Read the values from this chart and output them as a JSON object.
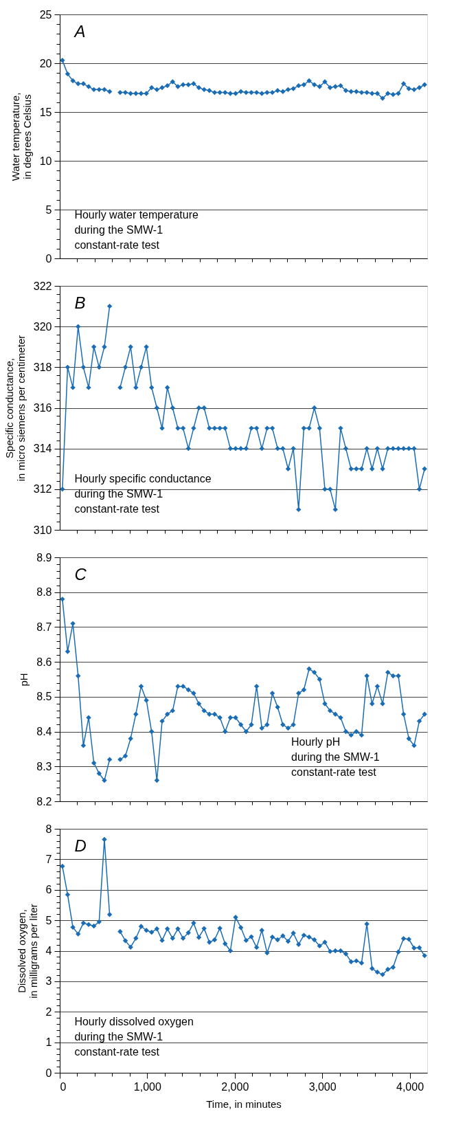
{
  "chart_data": [
    {
      "type": "line",
      "ylabel": "Water temperature,\nin degrees Celsius",
      "annotations": [
        "A",
        "Hourly water temperature\nduring the SMW-1\nconstant-rate test"
      ],
      "x": [
        30,
        90,
        150,
        210,
        270,
        330,
        390,
        450,
        510,
        570,
        630,
        690,
        750,
        810,
        870,
        930,
        990,
        1050,
        1110,
        1170,
        1230,
        1290,
        1350,
        1410,
        1470,
        1530,
        1590,
        1650,
        1710,
        1770,
        1830,
        1890,
        1950,
        2010,
        2070,
        2130,
        2190,
        2250,
        2310,
        2370,
        2430,
        2490,
        2550,
        2610,
        2670,
        2730,
        2790,
        2850,
        2910,
        2970,
        3030,
        3090,
        3150,
        3210,
        3270,
        3330,
        3390,
        3450,
        3510,
        3570,
        3630,
        3690,
        3750,
        3810,
        3870,
        3930,
        3990,
        4050,
        4110,
        4170
      ],
      "series": [
        {
          "color": "#1a6db5",
          "values": [
            20.3,
            18.9,
            18.2,
            17.9,
            17.9,
            17.6,
            17.3,
            17.3,
            17.3,
            17.1,
            null,
            17.0,
            17.0,
            16.9,
            16.9,
            16.9,
            16.9,
            17.5,
            17.3,
            17.5,
            17.7,
            18.1,
            17.6,
            17.8,
            17.8,
            17.9,
            17.5,
            17.3,
            17.2,
            17.0,
            17.0,
            17.0,
            16.9,
            16.9,
            17.1,
            17.0,
            17.0,
            17.0,
            16.9,
            17.0,
            17.0,
            17.2,
            17.1,
            17.3,
            17.4,
            17.7,
            17.8,
            18.2,
            17.8,
            17.6,
            18.1,
            17.5,
            17.6,
            17.7,
            17.2,
            17.1,
            17.1,
            17.0,
            17.0,
            16.9,
            16.9,
            16.4,
            16.9,
            16.8,
            16.9,
            17.9,
            17.4,
            17.3,
            17.5,
            17.8
          ]
        }
      ],
      "xlim": [
        0,
        4200
      ],
      "xticks": [
        {
          "value": 200,
          "label": null
        },
        {
          "value": 400,
          "label": null
        },
        {
          "value": 600,
          "label": null
        },
        {
          "value": 800,
          "label": null
        },
        {
          "value": 1000,
          "label": null
        },
        {
          "value": 1200,
          "label": null
        },
        {
          "value": 1400,
          "label": null
        },
        {
          "value": 1600,
          "label": null
        },
        {
          "value": 1800,
          "label": null
        },
        {
          "value": 2000,
          "label": null
        },
        {
          "value": 2200,
          "label": null
        },
        {
          "value": 2400,
          "label": null
        },
        {
          "value": 2600,
          "label": null
        },
        {
          "value": 2800,
          "label": null
        },
        {
          "value": 3000,
          "label": null
        },
        {
          "value": 3200,
          "label": null
        },
        {
          "value": 3400,
          "label": null
        },
        {
          "value": 3600,
          "label": null
        },
        {
          "value": 3800,
          "label": null
        },
        {
          "value": 4000,
          "label": null
        }
      ],
      "ylim": [
        0,
        25
      ],
      "yticks": [
        0,
        {
          "value": 1,
          "label": null
        },
        {
          "value": 2,
          "label": null
        },
        {
          "value": 3,
          "label": null
        },
        {
          "value": 4,
          "label": null
        },
        5,
        {
          "value": 6,
          "label": null
        },
        {
          "value": 7,
          "label": null
        },
        {
          "value": 8,
          "label": null
        },
        {
          "value": 9,
          "label": null
        },
        10,
        {
          "value": 11,
          "label": null
        },
        {
          "value": 12,
          "label": null
        },
        {
          "value": 13,
          "label": null
        },
        {
          "value": 14,
          "label": null
        },
        15,
        {
          "value": 16,
          "label": null
        },
        {
          "value": 17,
          "label": null
        },
        {
          "value": 18,
          "label": null
        },
        {
          "value": 19,
          "label": null
        },
        20,
        {
          "value": 21,
          "label": null
        },
        {
          "value": 22,
          "label": null
        },
        {
          "value": 23,
          "label": null
        },
        {
          "value": 24,
          "label": null
        },
        25
      ],
      "tick_labels": "y",
      "grid": "y",
      "marker": "diamond",
      "line_style": "solid"
    },
    {
      "type": "line",
      "ylabel": "Specific conductance,\nin micro siemens per centimeter",
      "annotations": [
        "B",
        "Hourly specific conductance\nduring the SMW-1\nconstant-rate test"
      ],
      "x": [
        30,
        90,
        150,
        210,
        270,
        330,
        390,
        450,
        510,
        570,
        630,
        690,
        750,
        810,
        870,
        930,
        990,
        1050,
        1110,
        1170,
        1230,
        1290,
        1350,
        1410,
        1470,
        1530,
        1590,
        1650,
        1710,
        1770,
        1830,
        1890,
        1950,
        2010,
        2070,
        2130,
        2190,
        2250,
        2310,
        2370,
        2430,
        2490,
        2550,
        2610,
        2670,
        2730,
        2790,
        2850,
        2910,
        2970,
        3030,
        3090,
        3150,
        3210,
        3270,
        3330,
        3390,
        3450,
        3510,
        3570,
        3630,
        3690,
        3750,
        3810,
        3870,
        3930,
        3990,
        4050,
        4110,
        4170
      ],
      "series": [
        {
          "color": "#1a6db5",
          "values": [
            312,
            318,
            317,
            320,
            318,
            317,
            319,
            318,
            319,
            321,
            null,
            317,
            318,
            319,
            317,
            318,
            319,
            317,
            316,
            315,
            317,
            316,
            315,
            315,
            314,
            315,
            316,
            316,
            315,
            315,
            315,
            315,
            314,
            314,
            314,
            314,
            315,
            315,
            314,
            315,
            315,
            314,
            314,
            313,
            314,
            311,
            315,
            315,
            316,
            315,
            312,
            312,
            311,
            315,
            314,
            313,
            313,
            313,
            314,
            313,
            314,
            313,
            314,
            314,
            314,
            314,
            314,
            314,
            312,
            313
          ]
        }
      ],
      "xlim": [
        0,
        4200
      ],
      "xticks": [
        {
          "value": 200,
          "label": null
        },
        {
          "value": 400,
          "label": null
        },
        {
          "value": 600,
          "label": null
        },
        {
          "value": 800,
          "label": null
        },
        {
          "value": 1000,
          "label": null
        },
        {
          "value": 1200,
          "label": null
        },
        {
          "value": 1400,
          "label": null
        },
        {
          "value": 1600,
          "label": null
        },
        {
          "value": 1800,
          "label": null
        },
        {
          "value": 2000,
          "label": null
        },
        {
          "value": 2200,
          "label": null
        },
        {
          "value": 2400,
          "label": null
        },
        {
          "value": 2600,
          "label": null
        },
        {
          "value": 2800,
          "label": null
        },
        {
          "value": 3000,
          "label": null
        },
        {
          "value": 3200,
          "label": null
        },
        {
          "value": 3400,
          "label": null
        },
        {
          "value": 3600,
          "label": null
        },
        {
          "value": 3800,
          "label": null
        },
        {
          "value": 4000,
          "label": null
        }
      ],
      "ylim": [
        310,
        322
      ],
      "yticks": [
        310,
        {
          "value": 310.4,
          "label": null
        },
        {
          "value": 310.8,
          "label": null
        },
        {
          "value": 311.2,
          "label": null
        },
        {
          "value": 311.6,
          "label": null
        },
        312,
        {
          "value": 312.4,
          "label": null
        },
        {
          "value": 312.8,
          "label": null
        },
        {
          "value": 313.2,
          "label": null
        },
        {
          "value": 313.6,
          "label": null
        },
        314,
        {
          "value": 314.4,
          "label": null
        },
        {
          "value": 314.8,
          "label": null
        },
        {
          "value": 315.2,
          "label": null
        },
        {
          "value": 315.6,
          "label": null
        },
        316,
        {
          "value": 316.4,
          "label": null
        },
        {
          "value": 316.8,
          "label": null
        },
        {
          "value": 317.2,
          "label": null
        },
        {
          "value": 317.6,
          "label": null
        },
        318,
        {
          "value": 318.4,
          "label": null
        },
        {
          "value": 318.8,
          "label": null
        },
        {
          "value": 319.2,
          "label": null
        },
        {
          "value": 319.6,
          "label": null
        },
        320,
        {
          "value": 320.4,
          "label": null
        },
        {
          "value": 320.8,
          "label": null
        },
        {
          "value": 321.2,
          "label": null
        },
        {
          "value": 321.6,
          "label": null
        },
        322
      ],
      "tick_labels": "y",
      "grid": "y",
      "marker": "diamond",
      "line_style": "solid"
    },
    {
      "type": "line",
      "ylabel": "pH",
      "annotations": [
        "C",
        "Hourly pH\nduring the SMW-1\nconstant-rate test"
      ],
      "x": [
        30,
        90,
        150,
        210,
        270,
        330,
        390,
        450,
        510,
        570,
        630,
        690,
        750,
        810,
        870,
        930,
        990,
        1050,
        1110,
        1170,
        1230,
        1290,
        1350,
        1410,
        1470,
        1530,
        1590,
        1650,
        1710,
        1770,
        1830,
        1890,
        1950,
        2010,
        2070,
        2130,
        2190,
        2250,
        2310,
        2370,
        2430,
        2490,
        2550,
        2610,
        2670,
        2730,
        2790,
        2850,
        2910,
        2970,
        3030,
        3090,
        3150,
        3210,
        3270,
        3330,
        3390,
        3450,
        3510,
        3570,
        3630,
        3690,
        3750,
        3810,
        3870,
        3930,
        3990,
        4050,
        4110,
        4170
      ],
      "series": [
        {
          "color": "#1a6db5",
          "values": [
            8.78,
            8.63,
            8.71,
            8.56,
            8.36,
            8.44,
            8.31,
            8.28,
            8.26,
            8.32,
            null,
            8.32,
            8.33,
            8.38,
            8.45,
            8.53,
            8.49,
            8.4,
            8.26,
            8.43,
            8.45,
            8.46,
            8.53,
            8.53,
            8.52,
            8.51,
            8.48,
            8.46,
            8.45,
            8.45,
            8.44,
            8.4,
            8.44,
            8.44,
            8.42,
            8.4,
            8.42,
            8.53,
            8.41,
            8.42,
            8.51,
            8.47,
            8.42,
            8.41,
            8.42,
            8.51,
            8.52,
            8.58,
            8.57,
            8.55,
            8.48,
            8.46,
            8.45,
            8.44,
            8.4,
            8.39,
            8.4,
            8.39,
            8.56,
            8.48,
            8.53,
            8.48,
            8.57,
            8.56,
            8.56,
            8.45,
            8.38,
            8.36,
            8.43,
            8.45
          ]
        }
      ],
      "xlim": [
        0,
        4200
      ],
      "xticks": [
        {
          "value": 200,
          "label": null
        },
        {
          "value": 400,
          "label": null
        },
        {
          "value": 600,
          "label": null
        },
        {
          "value": 800,
          "label": null
        },
        {
          "value": 1000,
          "label": null
        },
        {
          "value": 1200,
          "label": null
        },
        {
          "value": 1400,
          "label": null
        },
        {
          "value": 1600,
          "label": null
        },
        {
          "value": 1800,
          "label": null
        },
        {
          "value": 2000,
          "label": null
        },
        {
          "value": 2200,
          "label": null
        },
        {
          "value": 2400,
          "label": null
        },
        {
          "value": 2600,
          "label": null
        },
        {
          "value": 2800,
          "label": null
        },
        {
          "value": 3000,
          "label": null
        },
        {
          "value": 3200,
          "label": null
        },
        {
          "value": 3400,
          "label": null
        },
        {
          "value": 3600,
          "label": null
        },
        {
          "value": 3800,
          "label": null
        },
        {
          "value": 4000,
          "label": null
        }
      ],
      "ylim": [
        8.2,
        8.9
      ],
      "yticks": [
        8.2,
        {
          "value": 8.22,
          "label": null
        },
        {
          "value": 8.24,
          "label": null
        },
        {
          "value": 8.26,
          "label": null
        },
        {
          "value": 8.28,
          "label": null
        },
        8.3,
        {
          "value": 8.32,
          "label": null
        },
        {
          "value": 8.34,
          "label": null
        },
        {
          "value": 8.36,
          "label": null
        },
        {
          "value": 8.38,
          "label": null
        },
        8.4,
        {
          "value": 8.42,
          "label": null
        },
        {
          "value": 8.44,
          "label": null
        },
        {
          "value": 8.46,
          "label": null
        },
        {
          "value": 8.48,
          "label": null
        },
        8.5,
        {
          "value": 8.52,
          "label": null
        },
        {
          "value": 8.54,
          "label": null
        },
        {
          "value": 8.56,
          "label": null
        },
        {
          "value": 8.58,
          "label": null
        },
        8.6,
        {
          "value": 8.62,
          "label": null
        },
        {
          "value": 8.64,
          "label": null
        },
        {
          "value": 8.66,
          "label": null
        },
        {
          "value": 8.68,
          "label": null
        },
        8.7,
        {
          "value": 8.72,
          "label": null
        },
        {
          "value": 8.74,
          "label": null
        },
        {
          "value": 8.76,
          "label": null
        },
        {
          "value": 8.78,
          "label": null
        },
        8.8,
        {
          "value": 8.82,
          "label": null
        },
        {
          "value": 8.84,
          "label": null
        },
        {
          "value": 8.86,
          "label": null
        },
        {
          "value": 8.88,
          "label": null
        },
        8.9
      ],
      "tick_labels": "y",
      "grid": "y",
      "marker": "diamond",
      "line_style": "solid"
    },
    {
      "type": "line",
      "xlabel": "Time, in minutes",
      "ylabel": "Dissolved oxygen,\nin milligrams per liter",
      "annotations": [
        "D",
        "Hourly dissolved oxygen\nduring the SMW-1\nconstant-rate test"
      ],
      "x": [
        30,
        90,
        150,
        210,
        270,
        330,
        390,
        450,
        510,
        570,
        630,
        690,
        750,
        810,
        870,
        930,
        990,
        1050,
        1110,
        1170,
        1230,
        1290,
        1350,
        1410,
        1470,
        1530,
        1590,
        1650,
        1710,
        1770,
        1830,
        1890,
        1950,
        2010,
        2070,
        2130,
        2190,
        2250,
        2310,
        2370,
        2430,
        2490,
        2550,
        2610,
        2670,
        2730,
        2790,
        2850,
        2910,
        2970,
        3030,
        3090,
        3150,
        3210,
        3270,
        3330,
        3390,
        3450,
        3510,
        3570,
        3630,
        3690,
        3750,
        3810,
        3870,
        3930,
        3990,
        4050,
        4110,
        4170
      ],
      "series": [
        {
          "color": "#1a6db5",
          "values": [
            6.77,
            5.84,
            4.77,
            4.55,
            4.91,
            4.86,
            4.81,
            4.95,
            7.65,
            5.19,
            null,
            4.63,
            4.33,
            4.12,
            4.41,
            4.8,
            4.67,
            4.61,
            4.72,
            4.34,
            4.72,
            4.41,
            4.72,
            4.41,
            4.59,
            4.91,
            4.44,
            4.73,
            4.28,
            4.36,
            4.74,
            4.23,
            4.0,
            5.1,
            4.76,
            4.34,
            4.46,
            4.11,
            4.67,
            3.93,
            4.45,
            4.36,
            4.49,
            4.31,
            4.58,
            4.21,
            4.51,
            4.45,
            4.36,
            4.16,
            4.28,
            3.98,
            4.0,
            4.0,
            3.9,
            3.64,
            3.67,
            3.6,
            4.88,
            3.42,
            3.3,
            3.22,
            3.39,
            3.46,
            3.96,
            4.4,
            4.38,
            4.09,
            4.1,
            3.84
          ]
        }
      ],
      "xlim": [
        0,
        4200
      ],
      "xticks": [
        0,
        {
          "value": 200,
          "label": null
        },
        {
          "value": 400,
          "label": null
        },
        {
          "value": 600,
          "label": null
        },
        {
          "value": 800,
          "label": null
        },
        {
          "value": 1000,
          "label": "1,000"
        },
        {
          "value": 1200,
          "label": null
        },
        {
          "value": 1400,
          "label": null
        },
        {
          "value": 1600,
          "label": null
        },
        {
          "value": 1800,
          "label": null
        },
        {
          "value": 2000,
          "label": "2,000"
        },
        {
          "value": 2200,
          "label": null
        },
        {
          "value": 2400,
          "label": null
        },
        {
          "value": 2600,
          "label": null
        },
        {
          "value": 2800,
          "label": null
        },
        {
          "value": 3000,
          "label": "3,000"
        },
        {
          "value": 3200,
          "label": null
        },
        {
          "value": 3400,
          "label": null
        },
        {
          "value": 3600,
          "label": null
        },
        {
          "value": 3800,
          "label": null
        },
        {
          "value": 4000,
          "label": "4,000"
        }
      ],
      "ylim": [
        0,
        8
      ],
      "yticks": [
        0,
        {
          "value": 0.2,
          "label": null
        },
        {
          "value": 0.4,
          "label": null
        },
        {
          "value": 0.6,
          "label": null
        },
        {
          "value": 0.8,
          "label": null
        },
        1,
        {
          "value": 1.2,
          "label": null
        },
        {
          "value": 1.4,
          "label": null
        },
        {
          "value": 1.6,
          "label": null
        },
        {
          "value": 1.8,
          "label": null
        },
        2,
        {
          "value": 2.2,
          "label": null
        },
        {
          "value": 2.4,
          "label": null
        },
        {
          "value": 2.6,
          "label": null
        },
        {
          "value": 2.8,
          "label": null
        },
        3,
        {
          "value": 3.2,
          "label": null
        },
        {
          "value": 3.4,
          "label": null
        },
        {
          "value": 3.6,
          "label": null
        },
        {
          "value": 3.8,
          "label": null
        },
        4,
        {
          "value": 4.2,
          "label": null
        },
        {
          "value": 4.4,
          "label": null
        },
        {
          "value": 4.6,
          "label": null
        },
        {
          "value": 4.8,
          "label": null
        },
        5,
        {
          "value": 5.2,
          "label": null
        },
        {
          "value": 5.4,
          "label": null
        },
        {
          "value": 5.6,
          "label": null
        },
        {
          "value": 5.8,
          "label": null
        },
        6,
        {
          "value": 6.2,
          "label": null
        },
        {
          "value": 6.4,
          "label": null
        },
        {
          "value": 6.6,
          "label": null
        },
        {
          "value": 6.8,
          "label": null
        },
        7,
        {
          "value": 7.2,
          "label": null
        },
        {
          "value": 7.4,
          "label": null
        },
        {
          "value": 7.6,
          "label": null
        },
        {
          "value": 7.8,
          "label": null
        },
        8
      ],
      "grid": "y",
      "marker": "diamond",
      "line_style": "solid"
    }
  ]
}
